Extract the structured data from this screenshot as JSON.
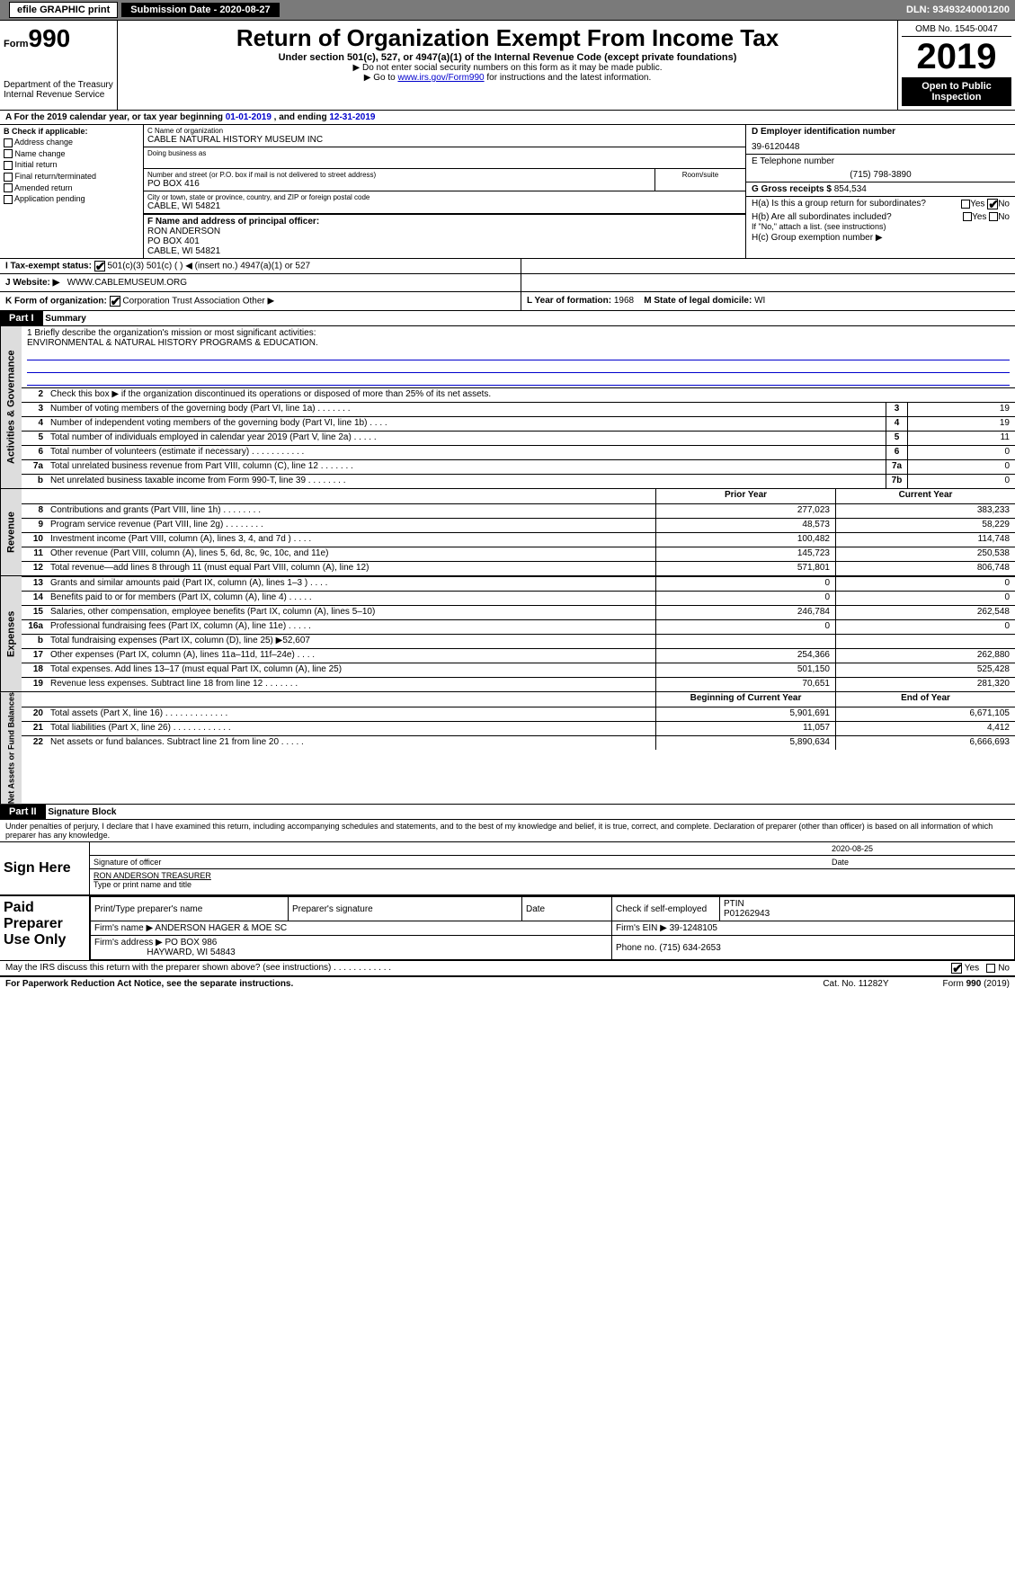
{
  "topbar": {
    "efile": "efile GRAPHIC print",
    "sub_label": "Submission Date - 2020-08-27",
    "dln": "DLN: 93493240001200"
  },
  "header": {
    "form_small": "Form",
    "form_big": "990",
    "dept": "Department of the Treasury",
    "irs": "Internal Revenue Service",
    "title": "Return of Organization Exempt From Income Tax",
    "sub1": "Under section 501(c), 527, or 4947(a)(1) of the Internal Revenue Code (except private foundations)",
    "sub2": "▶ Do not enter social security numbers on this form as it may be made public.",
    "sub3_pre": "▶ Go to ",
    "sub3_link": "www.irs.gov/Form990",
    "sub3_post": " for instructions and the latest information.",
    "omb": "OMB No. 1545-0047",
    "year": "2019",
    "open": "Open to Public Inspection"
  },
  "row_a": {
    "text_pre": "A   For the 2019 calendar year, or tax year beginning ",
    "begin": "01-01-2019",
    "mid": "  , and ending ",
    "end": "12-31-2019"
  },
  "section_b": {
    "b_label": "B Check if applicable:",
    "items": [
      "Address change",
      "Name change",
      "Initial return",
      "Final return/terminated",
      "Amended return",
      "Application pending"
    ],
    "c_label": "C Name of organization",
    "org_name": "CABLE NATURAL HISTORY MUSEUM INC",
    "dba_label": "Doing business as",
    "street_label": "Number and street (or P.O. box if mail is not delivered to street address)",
    "street": "PO BOX 416",
    "room_label": "Room/suite",
    "city_label": "City or town, state or province, country, and ZIP or foreign postal code",
    "city": "CABLE, WI  54821",
    "f_label": "F Name and address of principal officer:",
    "f_name": "RON ANDERSON",
    "f_addr1": "PO BOX 401",
    "f_addr2": "CABLE, WI  54821",
    "d_label": "D Employer identification number",
    "ein": "39-6120448",
    "e_label": "E Telephone number",
    "phone": "(715) 798-3890",
    "g_label": "G Gross receipts $",
    "g_val": "854,534",
    "ha_label": "H(a)   Is this a group return for subordinates?",
    "hb_label": "H(b)   Are all subordinates included?",
    "hb_note": "If \"No,\" attach a list. (see instructions)",
    "hc_label": "H(c)   Group exemption number ▶"
  },
  "row_i": {
    "label": "I   Tax-exempt status:",
    "opts": "501(c)(3)        501(c) (  ) ◀ (insert no.)        4947(a)(1) or        527"
  },
  "row_j": {
    "label": "J   Website: ▶",
    "val": "WWW.CABLEMUSEUM.ORG"
  },
  "row_k": {
    "label": "K Form of organization:",
    "opts": "Corporation        Trust        Association        Other ▶",
    "l_label": "L Year of formation:",
    "l_val": "1968",
    "m_label": "M State of legal domicile:",
    "m_val": "WI"
  },
  "part1": {
    "hdr": "Part I",
    "title": "Summary",
    "line1_label": "1   Briefly describe the organization's mission or most significant activities:",
    "mission": "ENVIRONMENTAL & NATURAL HISTORY PROGRAMS & EDUCATION.",
    "line2": "Check this box ▶        if the organization discontinued its operations or disposed of more than 25% of its net assets.",
    "rows_single": [
      {
        "n": "3",
        "lbl": "Number of voting members of the governing body (Part VI, line 1a)   .    .    .    .    .    .    .",
        "box": "3",
        "v": "19"
      },
      {
        "n": "4",
        "lbl": "Number of independent voting members of the governing body (Part VI, line 1b)   .    .    .    .",
        "box": "4",
        "v": "19"
      },
      {
        "n": "5",
        "lbl": "Total number of individuals employed in calendar year 2019 (Part V, line 2a)   .    .    .    .    .",
        "box": "5",
        "v": "11"
      },
      {
        "n": "6",
        "lbl": "Total number of volunteers (estimate if necessary)   .    .    .    .    .    .    .    .    .    .    .",
        "box": "6",
        "v": "0"
      },
      {
        "n": "7a",
        "lbl": "Total unrelated business revenue from Part VIII, column (C), line 12   .    .    .    .    .    .    .",
        "box": "7a",
        "v": "0"
      },
      {
        "n": "b",
        "lbl": "Net unrelated business taxable income from Form 990-T, line 39   .    .    .    .    .    .    .    .",
        "box": "7b",
        "v": "0"
      }
    ],
    "vlabels": {
      "gov": "Activities & Governance",
      "rev": "Revenue",
      "exp": "Expenses",
      "net": "Net Assets or Fund Balances"
    },
    "col_hdrs": {
      "prior": "Prior Year",
      "curr": "Current Year"
    },
    "revenue": [
      {
        "n": "8",
        "lbl": "Contributions and grants (Part VIII, line 1h)   .    .    .    .    .    .    .    .",
        "p": "277,023",
        "c": "383,233"
      },
      {
        "n": "9",
        "lbl": "Program service revenue (Part VIII, line 2g)   .    .    .    .    .    .    .    .",
        "p": "48,573",
        "c": "58,229"
      },
      {
        "n": "10",
        "lbl": "Investment income (Part VIII, column (A), lines 3, 4, and 7d )   .    .    .    .",
        "p": "100,482",
        "c": "114,748"
      },
      {
        "n": "11",
        "lbl": "Other revenue (Part VIII, column (A), lines 5, 6d, 8c, 9c, 10c, and 11e)",
        "p": "145,723",
        "c": "250,538"
      },
      {
        "n": "12",
        "lbl": "Total revenue—add lines 8 through 11 (must equal Part VIII, column (A), line 12)",
        "p": "571,801",
        "c": "806,748"
      }
    ],
    "expenses": [
      {
        "n": "13",
        "lbl": "Grants and similar amounts paid (Part IX, column (A), lines 1–3 )   .    .    .    .",
        "p": "0",
        "c": "0"
      },
      {
        "n": "14",
        "lbl": "Benefits paid to or for members (Part IX, column (A), line 4)   .    .    .    .    .",
        "p": "0",
        "c": "0"
      },
      {
        "n": "15",
        "lbl": "Salaries, other compensation, employee benefits (Part IX, column (A), lines 5–10)",
        "p": "246,784",
        "c": "262,548"
      },
      {
        "n": "16a",
        "lbl": "Professional fundraising fees (Part IX, column (A), line 11e)   .    .    .    .    .",
        "p": "0",
        "c": "0"
      },
      {
        "n": "b",
        "lbl": "Total fundraising expenses (Part IX, column (D), line 25) ▶52,607",
        "p": "",
        "c": "",
        "shade": true
      },
      {
        "n": "17",
        "lbl": "Other expenses (Part IX, column (A), lines 11a–11d, 11f–24e)   .    .    .    .",
        "p": "254,366",
        "c": "262,880"
      },
      {
        "n": "18",
        "lbl": "Total expenses. Add lines 13–17 (must equal Part IX, column (A), line 25)",
        "p": "501,150",
        "c": "525,428"
      },
      {
        "n": "19",
        "lbl": "Revenue less expenses. Subtract line 18 from line 12   .    .    .    .    .    .    .",
        "p": "70,651",
        "c": "281,320"
      }
    ],
    "col_hdrs2": {
      "prior": "Beginning of Current Year",
      "curr": "End of Year"
    },
    "net": [
      {
        "n": "20",
        "lbl": "Total assets (Part X, line 16)   .    .    .    .    .    .    .    .    .    .    .    .    .",
        "p": "5,901,691",
        "c": "6,671,105"
      },
      {
        "n": "21",
        "lbl": "Total liabilities (Part X, line 26)   .    .    .    .    .    .    .    .    .    .    .    .",
        "p": "11,057",
        "c": "4,412"
      },
      {
        "n": "22",
        "lbl": "Net assets or fund balances. Subtract line 21 from line 20   .    .    .    .    .",
        "p": "5,890,634",
        "c": "6,666,693"
      }
    ]
  },
  "part2": {
    "hdr": "Part II",
    "title": "Signature Block",
    "decl": "Under penalties of perjury, I declare that I have examined this return, including accompanying schedules and statements, and to the best of my knowledge and belief, it is true, correct, and complete. Declaration of preparer (other than officer) is based on all information of which preparer has any knowledge.",
    "sign_here": "Sign Here",
    "sig_date": "2020-08-25",
    "sig_officer_lbl": "Signature of officer",
    "date_lbl": "Date",
    "name": "RON ANDERSON  TREASURER",
    "name_lbl": "Type or print name and title",
    "paid": "Paid Preparer Use Only",
    "prep_name_lbl": "Print/Type preparer's name",
    "prep_sig_lbl": "Preparer's signature",
    "prep_date_lbl": "Date",
    "check_lbl": "Check         if self-employed",
    "ptin_lbl": "PTIN",
    "ptin": "P01262943",
    "firm_name_lbl": "Firm's name    ▶",
    "firm_name": "ANDERSON HAGER & MOE SC",
    "firm_ein_lbl": "Firm's EIN ▶",
    "firm_ein": "39-1248105",
    "firm_addr_lbl": "Firm's address ▶",
    "firm_addr": "PO BOX 986",
    "firm_city": "HAYWARD, WI  54843",
    "phone_lbl": "Phone no.",
    "phone": "(715) 634-2653",
    "discuss": "May the IRS discuss this return with the preparer shown above? (see instructions)   .    .    .    .    .    .    .    .    .    .    .    .",
    "yes": "Yes",
    "no": "No"
  },
  "footer": {
    "left": "For Paperwork Reduction Act Notice, see the separate instructions.",
    "mid": "Cat. No. 11282Y",
    "right": "Form 990 (2019)"
  }
}
